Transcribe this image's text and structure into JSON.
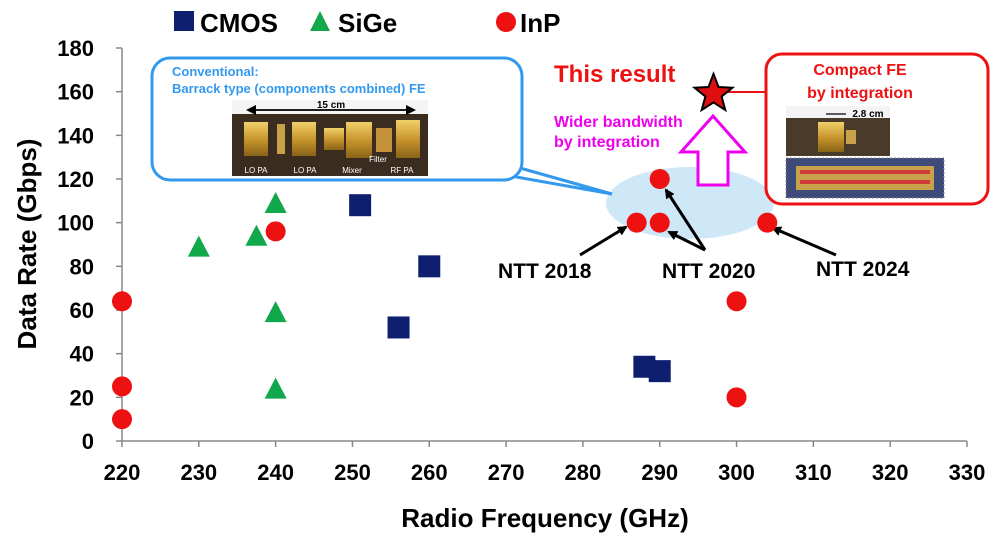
{
  "chart_data": {
    "type": "scatter",
    "xlabel": "Radio Frequency (GHz)",
    "ylabel": "Data Rate (Gbps)",
    "xlim": [
      220,
      330
    ],
    "ylim": [
      0,
      180
    ],
    "x_ticks": [
      220,
      230,
      240,
      250,
      260,
      270,
      280,
      290,
      300,
      310,
      320,
      330
    ],
    "y_ticks": [
      0,
      20,
      40,
      60,
      80,
      100,
      120,
      140,
      160,
      180
    ],
    "grid": false,
    "legend_position": "top",
    "series": [
      {
        "name": "CMOS",
        "marker": "square",
        "color": "#0d1f6e",
        "points": [
          [
            251,
            108
          ],
          [
            256,
            52
          ],
          [
            260,
            80
          ],
          [
            288,
            34
          ],
          [
            290,
            32
          ]
        ]
      },
      {
        "name": "SiGe",
        "marker": "triangle",
        "color": "#10a84a",
        "points": [
          [
            230,
            89
          ],
          [
            237.5,
            94
          ],
          [
            240,
            109
          ],
          [
            240,
            59
          ],
          [
            240,
            24
          ]
        ]
      },
      {
        "name": "InP",
        "marker": "circle",
        "color": "#ee1111",
        "points": [
          [
            220,
            64
          ],
          [
            220,
            25
          ],
          [
            220,
            10
          ],
          [
            240,
            96
          ],
          [
            287,
            100
          ],
          [
            290,
            120
          ],
          [
            290,
            100
          ],
          [
            300,
            64
          ],
          [
            300,
            20
          ],
          [
            304,
            100
          ]
        ]
      }
    ],
    "highlight": {
      "label": "This result",
      "marker": "star",
      "color": "#e01010",
      "x": 297,
      "y": 159
    },
    "annotations": {
      "ntt_2018": "NTT 2018",
      "ntt_2020": "NTT 2020",
      "ntt_2024": "NTT 2024",
      "this_result": "This result",
      "wider_bandwidth_line1": "Wider bandwidth",
      "wider_bandwidth_line2": "by integration",
      "conventional_line1": "Conventional:",
      "conventional_line2": "Barrack type (components combined) FE",
      "conventional_scale": "15 cm",
      "conventional_parts": [
        "LO PA",
        "LO PA",
        "Mixer",
        "Filter",
        "RF PA"
      ],
      "compact_line1": "Compact FE",
      "compact_line2": "by integration",
      "compact_scale": "2.8 cm"
    },
    "colors": {
      "cmos": "#0d1f6e",
      "sige": "#10a84a",
      "inp": "#ee1111",
      "conventional_box": "#3399ee",
      "compact_box": "#ee1111",
      "wider_bandwidth": "#ee00ee",
      "highlight_ellipse": "#cfe8f8"
    }
  }
}
